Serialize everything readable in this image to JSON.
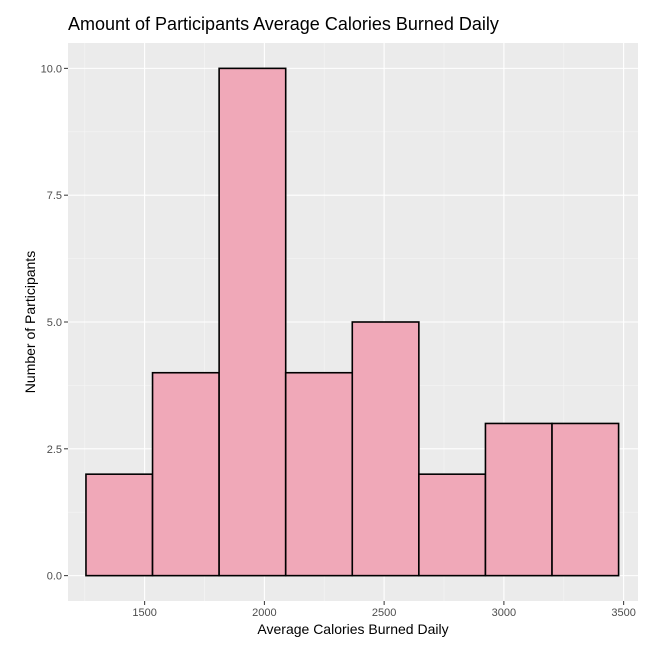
{
  "chart_data": {
    "type": "bar",
    "title": "Amount of Participants Average Calories Burned Daily",
    "xlabel": "Average Calories Burned Daily",
    "ylabel": "Number of Participants",
    "xlim": [
      1180,
      3560
    ],
    "ylim": [
      -0.5,
      10.5
    ],
    "x_ticks": [
      1500,
      2000,
      2500,
      3000,
      3500
    ],
    "x_tick_labels": [
      "1500",
      "2000",
      "2500",
      "3000",
      "3500"
    ],
    "y_ticks": [
      0,
      2.5,
      5,
      7.5,
      10
    ],
    "y_tick_labels": [
      "0.0",
      "2.5",
      "5.0",
      "7.5",
      "10.0"
    ],
    "bins": [
      {
        "x0": 1255,
        "x1": 1533,
        "count": 2
      },
      {
        "x0": 1533,
        "x1": 1811,
        "count": 4
      },
      {
        "x0": 1811,
        "x1": 2089,
        "count": 10
      },
      {
        "x0": 2089,
        "x1": 2367,
        "count": 4
      },
      {
        "x0": 2367,
        "x1": 2645,
        "count": 5
      },
      {
        "x0": 2645,
        "x1": 2923,
        "count": 2
      },
      {
        "x0": 2923,
        "x1": 3201,
        "count": 3
      },
      {
        "x0": 3201,
        "x1": 3479,
        "count": 3
      }
    ],
    "grid": true,
    "colors": {
      "panel_background": "#ebebeb",
      "grid_major": "#ffffff",
      "grid_minor": "#f5f5f5",
      "bar_fill": "#f0a8b8",
      "bar_stroke": "#000000"
    }
  }
}
